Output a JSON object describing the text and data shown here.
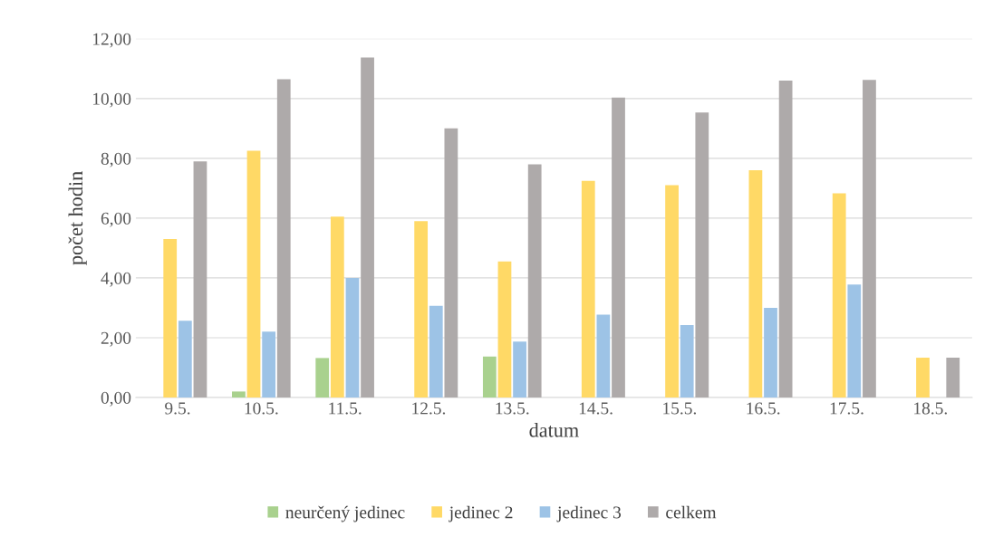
{
  "chart_data": {
    "type": "bar",
    "xlabel": "datum",
    "ylabel": "počet hodin",
    "categories": [
      "9.5.",
      "10.5.",
      "11.5.",
      "12.5.",
      "13.5.",
      "14.5.",
      "15.5.",
      "16.5.",
      "17.5.",
      "18.5."
    ],
    "series": [
      {
        "name": "neurčený jedinec",
        "color": "#a9d18e",
        "values": [
          null,
          0.2,
          1.32,
          null,
          1.37,
          null,
          null,
          null,
          null,
          null
        ]
      },
      {
        "name": "jedinec 2",
        "color": "#ffd966",
        "values": [
          5.3,
          8.25,
          6.05,
          5.9,
          4.55,
          7.25,
          7.1,
          7.6,
          6.83,
          1.33
        ]
      },
      {
        "name": "jedinec 3",
        "color": "#9dc3e6",
        "values": [
          2.57,
          2.2,
          4.0,
          3.07,
          1.87,
          2.77,
          2.42,
          3.0,
          3.78,
          null
        ]
      },
      {
        "name": "celkem",
        "color": "#aeaaaa",
        "values": [
          7.9,
          10.65,
          11.37,
          9.0,
          7.8,
          10.03,
          9.53,
          10.6,
          10.62,
          1.33
        ]
      }
    ],
    "ylim": [
      0,
      12
    ],
    "yticks": [
      {
        "value": 0,
        "label": "0,00"
      },
      {
        "value": 2,
        "label": "2,00"
      },
      {
        "value": 4,
        "label": "4,00"
      },
      {
        "value": 6,
        "label": "6,00"
      },
      {
        "value": 8,
        "label": "8,00"
      },
      {
        "value": 10,
        "label": "10,00"
      },
      {
        "value": 12,
        "label": "12,00"
      }
    ],
    "grid": "y",
    "legend": "bottom"
  }
}
